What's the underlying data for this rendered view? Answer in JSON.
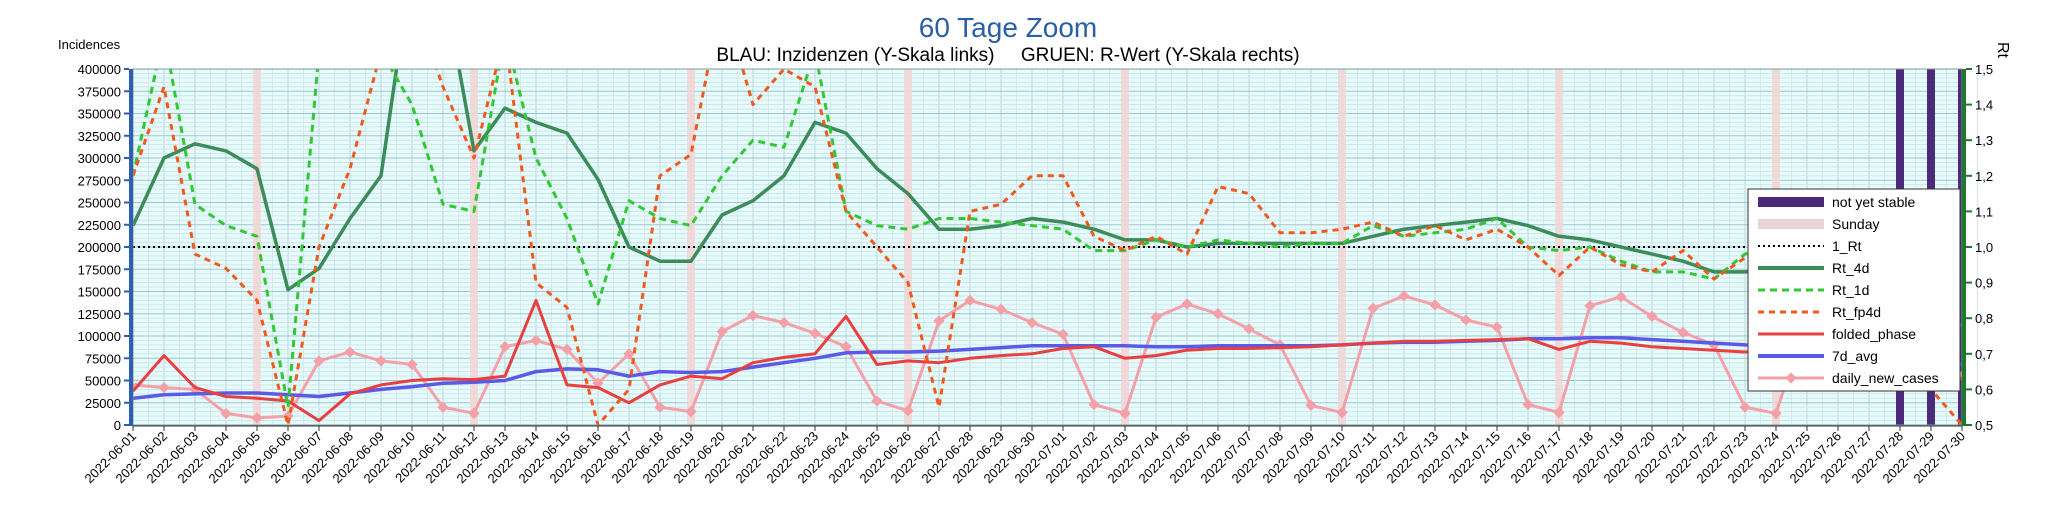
{
  "chart_data": {
    "type": "line",
    "title": "60 Tage Zoom",
    "subtitle": "BLAU: Inzidenzen (Y-Skala links)     GRUEN: R-Wert (Y-Skala rechts)",
    "ylabel_left": "Incidences",
    "ylabel_right": "Rt",
    "ylim_left": [
      0,
      400000
    ],
    "ylim_right": [
      0.5,
      1.5
    ],
    "yticks_left": [
      "0",
      "25000",
      "50000",
      "75000",
      "100000",
      "125000",
      "150000",
      "175000",
      "200000",
      "225000",
      "250000",
      "275000",
      "300000",
      "325000",
      "350000",
      "375000",
      "400000"
    ],
    "yticks_right": [
      "0,5",
      "0,6",
      "0,7",
      "0,8",
      "0,9",
      "1,0",
      "1,1",
      "1,2",
      "1,3",
      "1,4",
      "1,5"
    ],
    "x": [
      "2022-06-01",
      "2022-06-02",
      "2022-06-03",
      "2022-06-04",
      "2022-06-05",
      "2022-06-06",
      "2022-06-07",
      "2022-06-08",
      "2022-06-09",
      "2022-06-10",
      "2022-06-11",
      "2022-06-12",
      "2022-06-13",
      "2022-06-14",
      "2022-06-15",
      "2022-06-16",
      "2022-06-17",
      "2022-06-18",
      "2022-06-19",
      "2022-06-20",
      "2022-06-21",
      "2022-06-22",
      "2022-06-23",
      "2022-06-24",
      "2022-06-25",
      "2022-06-26",
      "2022-06-27",
      "2022-06-28",
      "2022-06-29",
      "2022-06-30",
      "2022-07-01",
      "2022-07-02",
      "2022-07-03",
      "2022-07-04",
      "2022-07-05",
      "2022-07-06",
      "2022-07-07",
      "2022-07-08",
      "2022-07-09",
      "2022-07-10",
      "2022-07-11",
      "2022-07-12",
      "2022-07-13",
      "2022-07-14",
      "2022-07-15",
      "2022-07-16",
      "2022-07-17",
      "2022-07-18",
      "2022-07-19",
      "2022-07-20",
      "2022-07-21",
      "2022-07-22",
      "2022-07-23",
      "2022-07-24",
      "2022-07-25",
      "2022-07-26",
      "2022-07-27",
      "2022-07-28",
      "2022-07-29",
      "2022-07-30"
    ],
    "sundays": [
      "2022-06-05",
      "2022-06-12",
      "2022-06-19",
      "2022-06-26",
      "2022-07-03",
      "2022-07-10",
      "2022-07-17",
      "2022-07-24"
    ],
    "not_yet_stable": [
      "2022-07-28",
      "2022-07-29",
      "2022-07-30"
    ],
    "reference_line_rt": 1.0,
    "grid": true,
    "legend_position": "right",
    "legend": [
      "not yet stable",
      "Sunday",
      "1_Rt",
      "Rt_4d",
      "Rt_1d",
      "Rt_fp4d",
      "folded_phase",
      "7d_avg",
      "daily_new_cases"
    ],
    "series": [
      {
        "name": "daily_new_cases",
        "axis": "left",
        "color": "#f4a0a8",
        "marker": true,
        "values": [
          45000,
          42000,
          40000,
          13000,
          8000,
          10000,
          72000,
          82000,
          72000,
          68000,
          20000,
          13000,
          88000,
          95000,
          85000,
          47000,
          80000,
          20000,
          15000,
          105000,
          123000,
          115000,
          103000,
          88000,
          27000,
          16000,
          117000,
          140000,
          130000,
          115000,
          102000,
          23000,
          13000,
          121000,
          136000,
          125000,
          108000,
          90000,
          22000,
          14000,
          131000,
          145000,
          135000,
          118000,
          110000,
          23000,
          14000,
          134000,
          144000,
          122000,
          104000,
          90000,
          20000,
          13000,
          120000,
          117000,
          101000,
          86000,
          65000,
          55000
        ]
      },
      {
        "name": "7d_avg",
        "axis": "left",
        "color": "#5a5ae6",
        "values": [
          30000,
          34000,
          35000,
          36000,
          36000,
          34000,
          32000,
          36000,
          40000,
          43000,
          47000,
          48000,
          50000,
          60000,
          63000,
          62000,
          55000,
          60000,
          59000,
          60000,
          65000,
          70000,
          75000,
          81000,
          82000,
          82000,
          83000,
          85000,
          87000,
          89000,
          89000,
          89000,
          89000,
          88000,
          88000,
          89000,
          89000,
          89000,
          89000,
          90000,
          92000,
          93000,
          93000,
          94000,
          95000,
          97000,
          97000,
          98000,
          98000,
          96000,
          94000,
          92000,
          90000,
          89000,
          88000,
          86000,
          83000,
          80000,
          73000,
          68000
        ]
      },
      {
        "name": "folded_phase",
        "axis": "left",
        "color": "#e84040",
        "values": [
          38000,
          78000,
          42000,
          32000,
          30000,
          27000,
          5000,
          35000,
          45000,
          50000,
          52000,
          51000,
          55000,
          140000,
          45000,
          42000,
          25000,
          45000,
          55000,
          52000,
          70000,
          76000,
          80000,
          122000,
          68000,
          72000,
          70000,
          75000,
          78000,
          80000,
          86000,
          88000,
          75000,
          78000,
          84000,
          86000,
          86000,
          87000,
          88000,
          90000,
          92000,
          94000,
          94000,
          95000,
          96000,
          97000,
          85000,
          94000,
          92000,
          88000,
          86000,
          84000,
          82000,
          84000,
          85000,
          85000,
          80000,
          76000,
          65000,
          52000
        ]
      },
      {
        "name": "Rt_4d",
        "axis": "right",
        "color": "#3c8c5a",
        "values": [
          1.06,
          1.25,
          1.29,
          1.27,
          1.22,
          0.88,
          0.94,
          1.08,
          1.2,
          1.8,
          1.75,
          1.27,
          1.39,
          1.35,
          1.32,
          1.19,
          1.0,
          0.96,
          0.96,
          1.09,
          1.13,
          1.2,
          1.35,
          1.32,
          1.22,
          1.15,
          1.05,
          1.05,
          1.06,
          1.08,
          1.07,
          1.05,
          1.02,
          1.02,
          1.0,
          1.01,
          1.01,
          1.01,
          1.01,
          1.01,
          1.03,
          1.05,
          1.06,
          1.07,
          1.08,
          1.06,
          1.03,
          1.02,
          1.0,
          0.98,
          0.96,
          0.93,
          0.93,
          0.94,
          0.93,
          0.92,
          0.9,
          0.85,
          0.79,
          0.78
        ]
      },
      {
        "name": "Rt_1d",
        "axis": "right",
        "color": "#33c733",
        "values": [
          1.2,
          1.6,
          1.12,
          1.06,
          1.03,
          0.55,
          1.55,
          1.65,
          1.55,
          1.4,
          1.12,
          1.1,
          1.6,
          1.25,
          1.08,
          0.84,
          1.13,
          1.08,
          1.06,
          1.2,
          1.3,
          1.28,
          1.55,
          1.1,
          1.06,
          1.05,
          1.08,
          1.08,
          1.07,
          1.06,
          1.05,
          0.99,
          0.99,
          1.02,
          1.0,
          1.02,
          1.01,
          1.0,
          1.01,
          1.01,
          1.06,
          1.03,
          1.04,
          1.05,
          1.08,
          1.0,
          0.99,
          1.0,
          0.96,
          0.93,
          0.93,
          0.91,
          0.98,
          1.0,
          0.95,
          0.9,
          0.88,
          0.87,
          0.78,
          0.83
        ]
      },
      {
        "name": "Rt_fp4d",
        "axis": "right",
        "color": "#f05a1e",
        "values": [
          1.2,
          1.45,
          0.98,
          0.94,
          0.85,
          0.5,
          1.0,
          1.22,
          1.55,
          1.7,
          1.45,
          1.25,
          1.6,
          0.9,
          0.83,
          0.5,
          0.6,
          1.2,
          1.26,
          1.7,
          1.4,
          1.5,
          1.45,
          1.1,
          1.0,
          0.9,
          0.55,
          1.1,
          1.12,
          1.2,
          1.2,
          1.03,
          0.99,
          1.03,
          0.98,
          1.17,
          1.15,
          1.04,
          1.04,
          1.05,
          1.07,
          1.03,
          1.06,
          1.02,
          1.05,
          1.0,
          0.92,
          1.0,
          0.95,
          0.93,
          0.99,
          0.91,
          0.97,
          1.0,
          1.01,
          0.99,
          0.94,
          0.87,
          0.6,
          0.5
        ]
      }
    ]
  }
}
